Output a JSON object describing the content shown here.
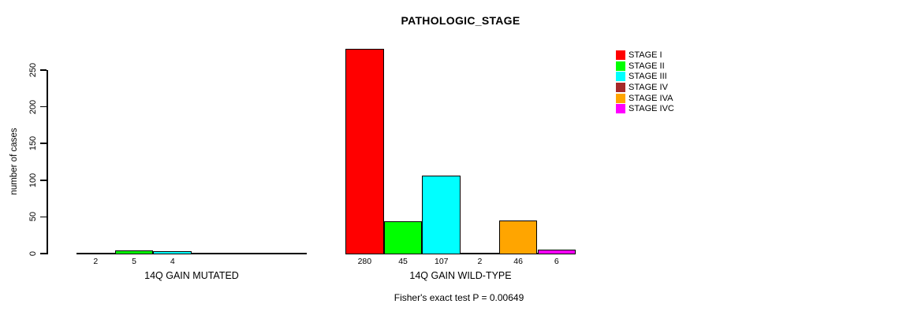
{
  "title": "PATHOLOGIC_STAGE",
  "footer": "Fisher's exact test P = 0.00649",
  "chart_data": {
    "type": "bar",
    "title": "PATHOLOGIC_STAGE",
    "ylabel": "number of cases",
    "xlabel": "",
    "ylim": [
      0,
      280
    ],
    "yticks": [
      0,
      50,
      100,
      150,
      200,
      250
    ],
    "grid": false,
    "legend_position": "right",
    "series": [
      {
        "name": "STAGE I",
        "color": "#ff0000",
        "values": [
          2,
          280
        ]
      },
      {
        "name": "STAGE II",
        "color": "#00ff00",
        "values": [
          5,
          45
        ]
      },
      {
        "name": "STAGE III",
        "color": "#00ffff",
        "values": [
          4,
          107
        ]
      },
      {
        "name": "STAGE IV",
        "color": "#a52a2a",
        "values": [
          0,
          2
        ]
      },
      {
        "name": "STAGE IVA",
        "color": "#ffa500",
        "values": [
          0,
          46
        ]
      },
      {
        "name": "STAGE IVC",
        "color": "#ff00ff",
        "values": [
          0,
          6
        ]
      }
    ],
    "categories": [
      "14Q GAIN MUTATED",
      "14Q GAIN WILD-TYPE"
    ],
    "groups": [
      {
        "label": "14Q GAIN MUTATED",
        "values": [
          2,
          5,
          4,
          0,
          0,
          0
        ],
        "value_labels": [
          "2",
          "5",
          "4",
          "",
          "",
          ""
        ]
      },
      {
        "label": "14Q GAIN WILD-TYPE",
        "values": [
          280,
          45,
          107,
          2,
          46,
          6
        ],
        "value_labels": [
          "280",
          "45",
          "107",
          "2",
          "46",
          "6"
        ]
      }
    ],
    "annotation": "Fisher's exact test P = 0.00649",
    "legend": [
      "STAGE I",
      "STAGE II",
      "STAGE III",
      "STAGE IV",
      "STAGE IVA",
      "STAGE IVC"
    ],
    "colors": [
      "#ff0000",
      "#00ff00",
      "#00ffff",
      "#a52a2a",
      "#ffa500",
      "#ff00ff"
    ]
  }
}
